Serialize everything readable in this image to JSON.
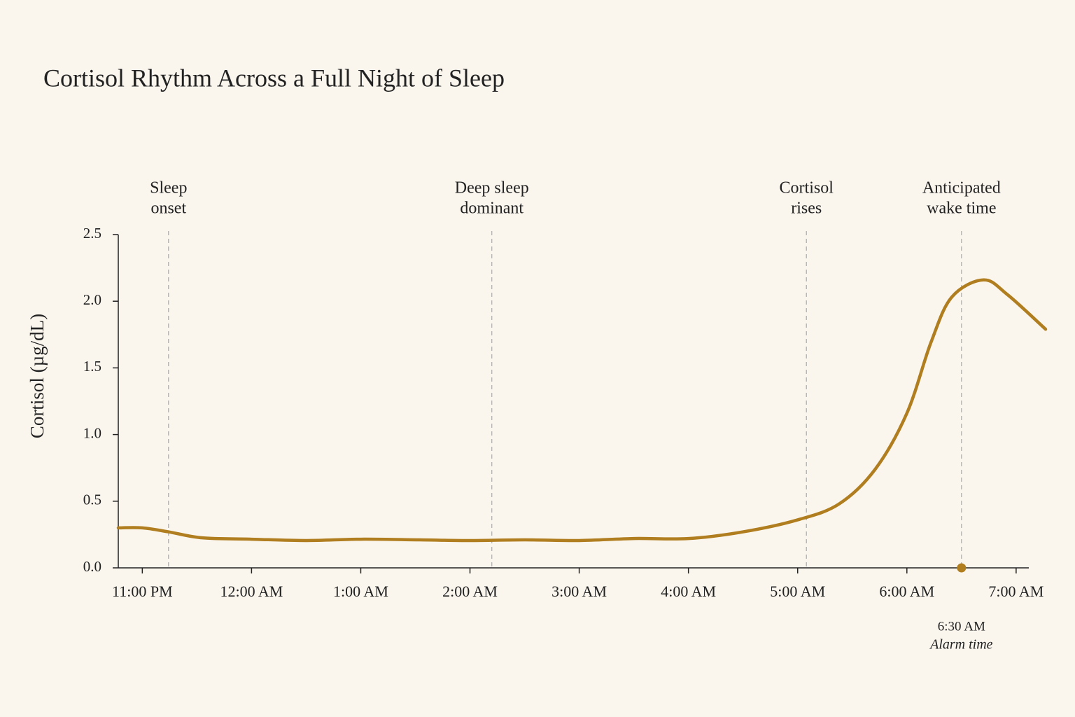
{
  "chart_data": {
    "type": "line",
    "title": "Cortisol Rhythm Across a Full Night of Sleep",
    "y_label": "Cortisol (µg/dL)",
    "x": [
      22.78,
      23,
      23.24,
      23.55,
      24,
      24.5,
      25,
      25.54,
      26,
      26.5,
      27,
      27.5,
      28,
      28.5,
      29,
      29.38,
      29.71,
      30,
      30.22,
      30.41,
      30.7,
      30.92,
      31.27
    ],
    "series": [
      {
        "name": "Cortisol",
        "color": "#b07d1f",
        "values": [
          0.3,
          0.3,
          0.27,
          0.225,
          0.215,
          0.205,
          0.215,
          0.21,
          0.205,
          0.21,
          0.205,
          0.22,
          0.22,
          0.27,
          0.36,
          0.48,
          0.74,
          1.16,
          1.69,
          2.03,
          2.16,
          2.05,
          1.79
        ]
      }
    ],
    "xlim": [
      22.78,
      31.27
    ],
    "ylim": [
      0,
      2.5
    ],
    "xticks": [
      {
        "value": 23,
        "label": "11:00 PM"
      },
      {
        "value": 24,
        "label": "12:00 AM"
      },
      {
        "value": 25,
        "label": "1:00 AM"
      },
      {
        "value": 26,
        "label": "2:00 AM"
      },
      {
        "value": 27,
        "label": "3:00 AM"
      },
      {
        "value": 28,
        "label": "4:00 AM"
      },
      {
        "value": 29,
        "label": "5:00 AM"
      },
      {
        "value": 30,
        "label": "6:00 AM"
      },
      {
        "value": 31,
        "label": "7:00 AM"
      }
    ],
    "yticks": [
      {
        "value": 0,
        "label": "0.0"
      },
      0.5,
      {
        "value": 1,
        "label": "1.0"
      },
      1.5,
      {
        "value": 2,
        "label": "2.0"
      },
      2.5
    ],
    "annotations": [
      {
        "x": 23.24,
        "lines": [
          "Sleep",
          "onset"
        ]
      },
      {
        "x": 26.2,
        "lines": [
          "Deep sleep",
          "dominant"
        ]
      },
      {
        "x": 29.08,
        "lines": [
          "Cortisol",
          "rises"
        ]
      },
      {
        "x": 30.5,
        "lines": [
          "Anticipated",
          "wake time"
        ]
      }
    ],
    "marker": {
      "x": 30.5,
      "y": 0,
      "label": "6:30 AM",
      "note": "Alarm time"
    }
  }
}
